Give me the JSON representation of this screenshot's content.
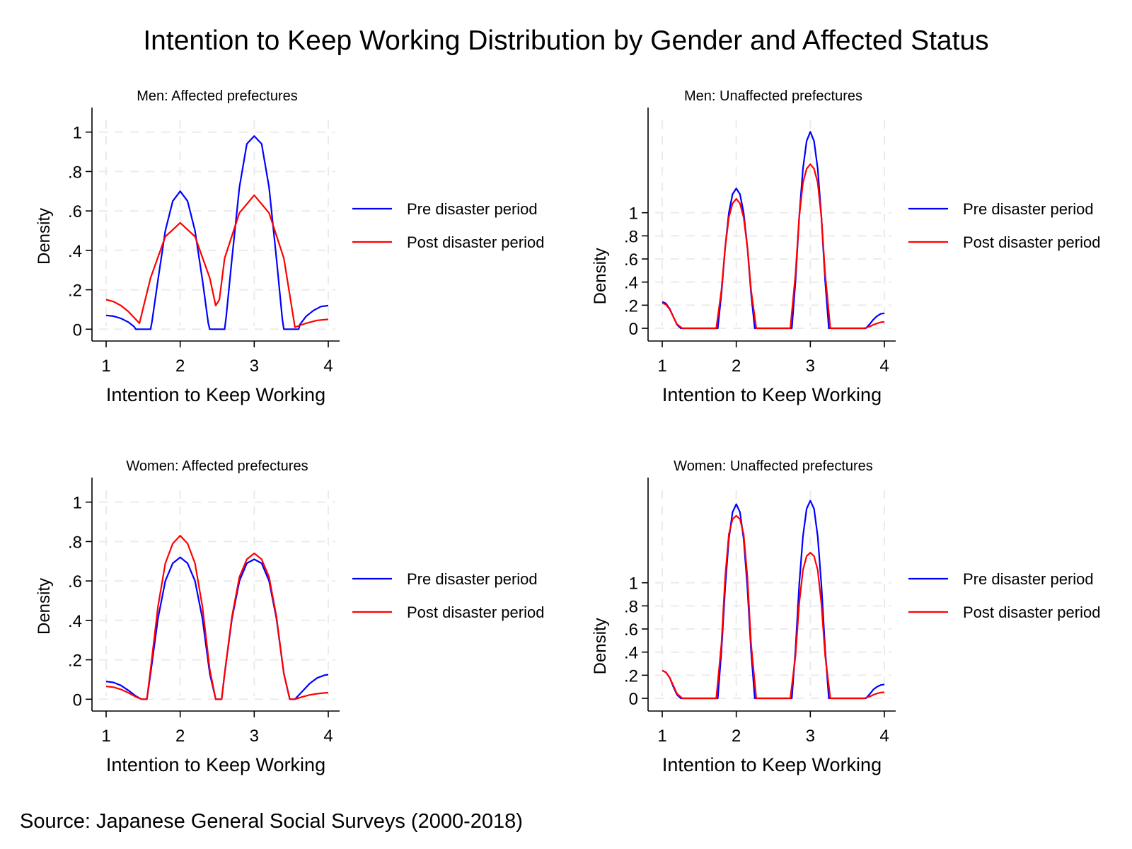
{
  "title": "Intention to Keep Working Distribution by Gender and Affected Status",
  "note": "Source: Japanese General Social Surveys (2000-2018)",
  "colors": {
    "pre": "#0000ff",
    "post": "#ff0000"
  },
  "chart_data": [
    {
      "type": "line",
      "title": "Men: Affected prefectures",
      "xlabel": "Intention to Keep Working",
      "ylabel": "Density",
      "xlim": [
        1,
        4
      ],
      "ylim": [
        -0.06,
        1.06
      ],
      "x_ticks": [
        1,
        2,
        3,
        4
      ],
      "x_tick_labels": [
        "1",
        "2",
        "3",
        "4"
      ],
      "y_ticks": [
        0,
        0.2,
        0.4,
        0.6,
        0.8,
        1
      ],
      "y_tick_labels": [
        "0",
        ".2",
        ".4",
        ".6",
        ".8",
        "1"
      ],
      "grid": true,
      "legend_position": "right",
      "series": [
        {
          "name": "Pre disaster period",
          "color": "#0000ff",
          "x": [
            1.0,
            1.1,
            1.2,
            1.3,
            1.38,
            1.4,
            1.6,
            1.62,
            1.7,
            1.8,
            1.9,
            2.0,
            2.1,
            2.2,
            2.3,
            2.38,
            2.4,
            2.6,
            2.62,
            2.7,
            2.8,
            2.9,
            3.0,
            3.1,
            3.2,
            3.3,
            3.38,
            3.4,
            3.6,
            3.62,
            3.7,
            3.8,
            3.9,
            4.0
          ],
          "y": [
            0.07,
            0.066,
            0.055,
            0.036,
            0.012,
            0.0,
            0.0,
            0.04,
            0.25,
            0.5,
            0.65,
            0.7,
            0.65,
            0.5,
            0.25,
            0.03,
            0.0,
            0.0,
            0.06,
            0.36,
            0.72,
            0.94,
            0.98,
            0.94,
            0.72,
            0.36,
            0.05,
            0.0,
            0.0,
            0.025,
            0.065,
            0.095,
            0.115,
            0.12
          ]
        },
        {
          "name": "Post disaster period",
          "color": "#ff0000",
          "x": [
            1.0,
            1.1,
            1.2,
            1.3,
            1.45,
            1.6,
            1.8,
            2.0,
            2.2,
            2.4,
            2.48,
            2.53,
            2.6,
            2.8,
            3.0,
            3.2,
            3.4,
            3.55,
            3.7,
            3.85,
            4.0
          ],
          "y": [
            0.15,
            0.14,
            0.12,
            0.09,
            0.03,
            0.26,
            0.47,
            0.54,
            0.47,
            0.26,
            0.12,
            0.15,
            0.36,
            0.59,
            0.68,
            0.59,
            0.36,
            0.01,
            0.03,
            0.045,
            0.05
          ]
        }
      ]
    },
    {
      "type": "line",
      "title": "Men: Unaffected prefectures",
      "xlabel": "Intention to Keep Working",
      "ylabel": "Density",
      "xlim": [
        1,
        4
      ],
      "ylim": [
        -0.11,
        1.8
      ],
      "x_ticks": [
        1,
        2,
        3,
        4
      ],
      "x_tick_labels": [
        "1",
        "2",
        "3",
        "4"
      ],
      "y_ticks": [
        0,
        0.2,
        0.4,
        0.6,
        0.8,
        1
      ],
      "y_tick_labels": [
        "0",
        ".2",
        ".4",
        ".6",
        ".8",
        "1"
      ],
      "grid": true,
      "legend_position": "right",
      "series": [
        {
          "name": "Pre disaster period",
          "color": "#0000ff",
          "x": [
            1.0,
            1.05,
            1.1,
            1.15,
            1.2,
            1.25,
            1.75,
            1.8,
            1.85,
            1.9,
            1.95,
            2.0,
            2.05,
            2.1,
            2.15,
            2.2,
            2.25,
            2.75,
            2.8,
            2.85,
            2.9,
            2.95,
            3.0,
            3.05,
            3.1,
            3.15,
            3.2,
            3.25,
            3.75,
            3.8,
            3.85,
            3.9,
            3.95,
            4.0
          ],
          "y": [
            0.23,
            0.215,
            0.17,
            0.1,
            0.03,
            0.0,
            0.0,
            0.3,
            0.7,
            1.0,
            1.16,
            1.21,
            1.16,
            1.0,
            0.7,
            0.3,
            0.0,
            0.0,
            0.41,
            0.96,
            1.38,
            1.62,
            1.7,
            1.62,
            1.38,
            0.96,
            0.41,
            0.0,
            0.0,
            0.035,
            0.075,
            0.105,
            0.125,
            0.13
          ]
        },
        {
          "name": "Post disaster period",
          "color": "#ff0000",
          "x": [
            1.0,
            1.05,
            1.1,
            1.15,
            1.2,
            1.27,
            1.73,
            1.8,
            1.85,
            1.9,
            1.95,
            2.0,
            2.05,
            2.1,
            2.15,
            2.2,
            2.27,
            2.73,
            2.8,
            2.85,
            2.9,
            2.95,
            3.0,
            3.05,
            3.1,
            3.15,
            3.2,
            3.27,
            3.73,
            3.8,
            3.85,
            3.9,
            3.95,
            4.0
          ],
          "y": [
            0.22,
            0.205,
            0.165,
            0.1,
            0.035,
            0.0,
            0.0,
            0.33,
            0.7,
            0.96,
            1.08,
            1.12,
            1.08,
            0.96,
            0.7,
            0.33,
            0.0,
            0.0,
            0.47,
            0.96,
            1.26,
            1.38,
            1.42,
            1.38,
            1.26,
            0.96,
            0.47,
            0.0,
            0.0,
            0.015,
            0.03,
            0.042,
            0.052,
            0.055
          ]
        }
      ]
    },
    {
      "type": "line",
      "title": "Women: Affected prefectures",
      "xlabel": "Intention to Keep Working",
      "ylabel": "Density",
      "xlim": [
        1,
        4
      ],
      "ylim": [
        -0.06,
        1.06
      ],
      "x_ticks": [
        1,
        2,
        3,
        4
      ],
      "x_tick_labels": [
        "1",
        "2",
        "3",
        "4"
      ],
      "y_ticks": [
        0,
        0.2,
        0.4,
        0.6,
        0.8,
        1
      ],
      "y_tick_labels": [
        "0",
        ".2",
        ".4",
        ".6",
        ".8",
        "1"
      ],
      "grid": true,
      "legend_position": "right",
      "series": [
        {
          "name": "Pre disaster period",
          "color": "#0000ff",
          "x": [
            1.0,
            1.1,
            1.2,
            1.3,
            1.4,
            1.48,
            1.55,
            1.6,
            1.7,
            1.8,
            1.9,
            2.0,
            2.1,
            2.2,
            2.3,
            2.4,
            2.48,
            2.56,
            2.6,
            2.7,
            2.8,
            2.9,
            3.0,
            3.1,
            3.2,
            3.3,
            3.4,
            3.48,
            3.55,
            3.65,
            3.75,
            3.85,
            3.95,
            4.0
          ],
          "y": [
            0.09,
            0.085,
            0.07,
            0.045,
            0.016,
            0.0,
            0.0,
            0.13,
            0.41,
            0.6,
            0.69,
            0.72,
            0.69,
            0.6,
            0.41,
            0.13,
            0.0,
            0.0,
            0.13,
            0.41,
            0.6,
            0.69,
            0.71,
            0.69,
            0.6,
            0.41,
            0.13,
            0.0,
            0.0,
            0.04,
            0.08,
            0.108,
            0.122,
            0.125
          ]
        },
        {
          "name": "Post disaster period",
          "color": "#ff0000",
          "x": [
            1.0,
            1.1,
            1.2,
            1.3,
            1.4,
            1.48,
            1.55,
            1.6,
            1.7,
            1.8,
            1.9,
            2.0,
            2.1,
            2.2,
            2.3,
            2.4,
            2.48,
            2.56,
            2.6,
            2.7,
            2.8,
            2.9,
            3.0,
            3.1,
            3.2,
            3.3,
            3.4,
            3.48,
            3.55,
            3.65,
            3.75,
            3.85,
            3.95,
            4.0
          ],
          "y": [
            0.065,
            0.061,
            0.05,
            0.033,
            0.012,
            0.0,
            0.0,
            0.15,
            0.47,
            0.69,
            0.79,
            0.83,
            0.79,
            0.69,
            0.47,
            0.15,
            0.0,
            0.0,
            0.13,
            0.42,
            0.62,
            0.71,
            0.74,
            0.71,
            0.62,
            0.42,
            0.13,
            0.0,
            0.0,
            0.012,
            0.022,
            0.028,
            0.032,
            0.033
          ]
        }
      ]
    },
    {
      "type": "line",
      "title": "Women: Unaffected prefectures",
      "xlabel": "Intention to Keep Working",
      "ylabel": "Density",
      "xlim": [
        1,
        4
      ],
      "ylim": [
        -0.11,
        1.8
      ],
      "x_ticks": [
        1,
        2,
        3,
        4
      ],
      "x_tick_labels": [
        "1",
        "2",
        "3",
        "4"
      ],
      "y_ticks": [
        0,
        0.2,
        0.4,
        0.6,
        0.8,
        1
      ],
      "y_tick_labels": [
        "0",
        ".2",
        ".4",
        ".6",
        ".8",
        "1"
      ],
      "grid": true,
      "legend_position": "right",
      "series": [
        {
          "name": "Pre disaster period",
          "color": "#0000ff",
          "x": [
            1.0,
            1.05,
            1.1,
            1.15,
            1.2,
            1.25,
            1.75,
            1.8,
            1.85,
            1.9,
            1.95,
            2.0,
            2.05,
            2.1,
            2.15,
            2.2,
            2.25,
            2.75,
            2.8,
            2.85,
            2.9,
            2.95,
            3.0,
            3.05,
            3.1,
            3.15,
            3.2,
            3.25,
            3.75,
            3.8,
            3.85,
            3.9,
            3.95,
            4.0
          ],
          "y": [
            0.24,
            0.225,
            0.18,
            0.1,
            0.03,
            0.0,
            0.0,
            0.41,
            0.96,
            1.38,
            1.61,
            1.68,
            1.61,
            1.38,
            0.96,
            0.41,
            0.0,
            0.0,
            0.42,
            0.98,
            1.4,
            1.64,
            1.71,
            1.64,
            1.4,
            0.98,
            0.42,
            0.0,
            0.0,
            0.035,
            0.075,
            0.1,
            0.115,
            0.12
          ]
        },
        {
          "name": "Post disaster period",
          "color": "#ff0000",
          "x": [
            1.0,
            1.05,
            1.1,
            1.15,
            1.2,
            1.27,
            1.73,
            1.8,
            1.85,
            1.9,
            1.95,
            2.0,
            2.05,
            2.1,
            2.15,
            2.2,
            2.27,
            2.73,
            2.8,
            2.85,
            2.9,
            2.95,
            3.0,
            3.05,
            3.1,
            3.15,
            3.2,
            3.27,
            3.73,
            3.8,
            3.85,
            3.9,
            3.95,
            4.0
          ],
          "y": [
            0.24,
            0.225,
            0.18,
            0.11,
            0.04,
            0.0,
            0.0,
            0.47,
            1.05,
            1.42,
            1.55,
            1.58,
            1.55,
            1.42,
            1.05,
            0.47,
            0.0,
            0.0,
            0.37,
            0.82,
            1.11,
            1.23,
            1.26,
            1.23,
            1.11,
            0.82,
            0.37,
            0.0,
            0.0,
            0.015,
            0.03,
            0.042,
            0.05,
            0.052
          ]
        }
      ]
    }
  ]
}
